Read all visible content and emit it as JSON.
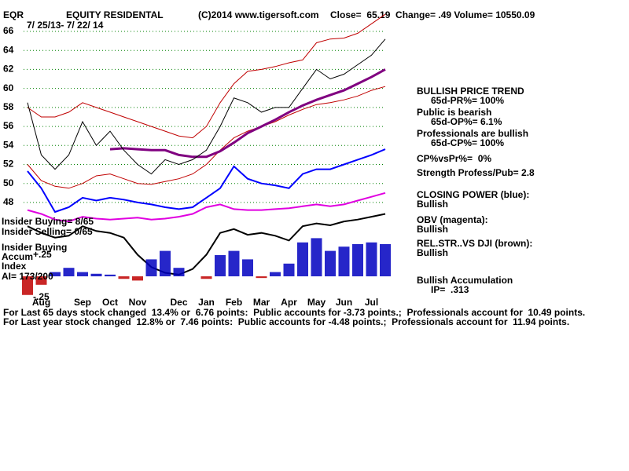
{
  "chart_data": {
    "type": "line",
    "ticker": "EQR",
    "title": "EQUITY RESIDENTAL",
    "source": "(C)2014 www.tigersoft.com",
    "stats": "Close=  65.19  Change= .49 Volume= 10550.09",
    "subtitle": "7/ 25/13- 7/ 22/ 14",
    "categories": [
      null,
      "Aug",
      null,
      null,
      "Sep",
      null,
      "Oct",
      null,
      "Nov",
      null,
      null,
      "Dec",
      null,
      "Jan",
      null,
      "Feb",
      null,
      "Mar",
      null,
      "Apr",
      null,
      "May",
      null,
      "Jun",
      null,
      "Jul",
      null
    ],
    "ylim": [
      38,
      66
    ],
    "yticks": [
      48,
      50,
      52,
      54,
      56,
      58,
      60,
      62,
      64,
      66
    ],
    "y2lim": [
      -0.25,
      0.5
    ],
    "y2ticks": [
      {
        "value": 0.25,
        "label": "+.25"
      },
      {
        "value": -0.25,
        "label": "-.25"
      }
    ],
    "grid": true,
    "grid_color": "#008000",
    "series": [
      {
        "color": "#c00000",
        "values": [
          58,
          57,
          57,
          57.5,
          58.5,
          58,
          57.5,
          57,
          56.5,
          56,
          55.5,
          55,
          54.8,
          56,
          58.5,
          60.5,
          61.8,
          62,
          62.3,
          62.7,
          63,
          64.8,
          65.2,
          65.3,
          65.8,
          66.8,
          67.8
        ]
      },
      {
        "color": "#c00000",
        "values": [
          52,
          50.3,
          49.7,
          49.5,
          50,
          50.8,
          51,
          50.5,
          50,
          49.9,
          50.2,
          50.5,
          51,
          52,
          53.5,
          54.8,
          55.5,
          56,
          56.5,
          57.2,
          57.8,
          58.3,
          58.5,
          58.8,
          59.2,
          59.8,
          60.2
        ]
      },
      {
        "color": "#800080",
        "width": 3,
        "values": [
          null,
          null,
          null,
          null,
          null,
          null,
          53.6,
          53.7,
          53.6,
          53.5,
          53.5,
          53,
          52.8,
          52.8,
          53.4,
          54.3,
          55.3,
          56,
          56.7,
          57.5,
          58.2,
          58.8,
          59.3,
          59.8,
          60.5,
          61.2,
          62
        ]
      },
      {
        "color": "#000000",
        "values": [
          58.5,
          53,
          51.5,
          53,
          56.5,
          54,
          55.5,
          53.5,
          52,
          51,
          52.5,
          52,
          52.5,
          53.5,
          56,
          59,
          58.5,
          57.5,
          58,
          58,
          60,
          62,
          61,
          61.5,
          62.5,
          63.5,
          65.19
        ]
      },
      {
        "name": "CLOSING POWER (blue):",
        "status": "Bullish",
        "color": "#0000ff",
        "width": 2,
        "values": [
          51.3,
          49.5,
          47,
          47.5,
          48.5,
          48.2,
          48.5,
          48.3,
          48,
          47.8,
          47.5,
          47.3,
          47.5,
          48.5,
          49.5,
          51.8,
          50.5,
          50,
          49.8,
          49.5,
          51,
          51.5,
          51.5,
          52,
          52.5,
          53,
          53.6
        ]
      },
      {
        "name": "OBV (magenta):",
        "status": "Bullish",
        "color": "#e000e0",
        "width": 2,
        "values": [
          47.2,
          46.8,
          46.2,
          46,
          46.5,
          46.3,
          46.2,
          46.3,
          46.4,
          46.2,
          46.3,
          46.5,
          46.8,
          47.5,
          47.8,
          47.3,
          47.2,
          47.2,
          47.3,
          47.4,
          47.6,
          47.8,
          47.6,
          47.8,
          48.2,
          48.6,
          49
        ]
      },
      {
        "name": "REL.STR..VS DJI (brown):",
        "status": "Bullish",
        "color": "#000000",
        "width": 2,
        "values": [
          45.5,
          44.8,
          44.3,
          44.5,
          45.5,
          45,
          44.8,
          44.3,
          42.5,
          41.2,
          40.6,
          40.4,
          41,
          42.5,
          44.8,
          45.2,
          44.6,
          44.8,
          44.5,
          44,
          45.5,
          45.8,
          45.6,
          46,
          46.2,
          46.5,
          46.8
        ]
      },
      {
        "name": "Bullish Accumulation",
        "type": "bar",
        "axis": "y2",
        "color": "#0000c0",
        "negative_color": "#c00000",
        "values": [
          -0.22,
          -0.1,
          0.05,
          0.1,
          0.05,
          0.03,
          0.02,
          -0.03,
          -0.05,
          0.2,
          0.3,
          0.1,
          0.0,
          -0.03,
          0.25,
          0.3,
          0.2,
          -0.02,
          0.05,
          0.15,
          0.4,
          0.45,
          0.3,
          0.35,
          0.38,
          0.4,
          0.38
        ]
      }
    ],
    "insider": [
      "Insider Buying= 8/65",
      "Insider Selling= 0/65",
      "Insider Buying",
      "Accum",
      "Index",
      "AI= 173/200"
    ],
    "signals": [
      "BULLISH PRICE TREND",
      "65d-PR%= 100%",
      "Public is bearish",
      "65d-OP%= 6.1%",
      "Professionals are bullish",
      "65d-CP%= 100%",
      "CP%vsPr%=  0%",
      "Strength Profess/Pub= 2.8",
      "IP=  .313"
    ],
    "footer": [
      "For Last 65 days stock changed  13.4% or  6.76 points:  Public accounts for -3.73 points.;  Professionals account for  10.49 points.",
      "For Last year stock changed  12.8% or  7.46 points:  Public accounts for -4.48 points.;  Professionals account for  11.94 points."
    ]
  }
}
